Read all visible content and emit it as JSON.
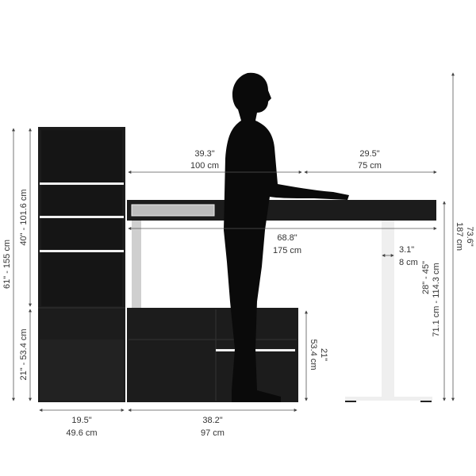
{
  "colors": {
    "furniture": "#1c1c1c",
    "leg": "#f2f2f2",
    "line": "#555555",
    "shelf": "#f0f0f0"
  },
  "dimensions": {
    "bookcase_total_height": "61\" - 155 cm",
    "bookcase_upper_height": "40\" - 101.6 cm",
    "bookcase_lower_height": "21\" - 53.4 cm",
    "bookcase_width": {
      "in": "19.5\"",
      "cm": "49.6 cm"
    },
    "cabinet_width": {
      "in": "38.2\"",
      "cm": "97 cm"
    },
    "cabinet_height": {
      "in": "21\"",
      "cm": "53.4 cm"
    },
    "return_width": {
      "in": "39.3\"",
      "cm": "100 cm"
    },
    "desk_depth": {
      "in": "29.5\"",
      "cm": "75 cm"
    },
    "desk_width": {
      "in": "68.8\"",
      "cm": "175 cm"
    },
    "leg_width": {
      "in": "3.1\"",
      "cm": "8 cm"
    },
    "desk_height": {
      "in": "28\" - 45\"",
      "cm": "71.1 cm - 114.3 cm"
    },
    "person_height": {
      "in": "73.6\"",
      "cm": "187 cm"
    }
  }
}
